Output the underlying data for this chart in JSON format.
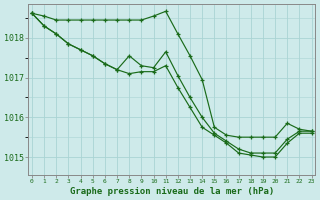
{
  "xlabel": "Graphe pression niveau de la mer (hPa)",
  "x_ticks": [
    0,
    1,
    2,
    3,
    4,
    5,
    6,
    7,
    8,
    9,
    10,
    11,
    12,
    13,
    14,
    15,
    16,
    17,
    18,
    19,
    20,
    21,
    22,
    23
  ],
  "ylim": [
    1014.55,
    1018.85
  ],
  "yticks": [
    1015,
    1016,
    1017,
    1018
  ],
  "xlim": [
    -0.3,
    23.3
  ],
  "bg_color": "#ceeaea",
  "grid_color": "#aad4d4",
  "line_color": "#1a6b1a",
  "line1": [
    1018.62,
    1018.55,
    1018.45,
    1018.45,
    1018.45,
    1018.45,
    1018.45,
    1018.45,
    1018.45,
    1018.45,
    1018.55,
    1018.67,
    1018.1,
    1017.55,
    1016.95,
    1015.75,
    1015.55,
    1015.5,
    1015.5,
    1015.5,
    1015.5,
    1015.85,
    1015.7,
    1015.65
  ],
  "line2": [
    1018.62,
    1018.3,
    1018.1,
    1017.85,
    1017.7,
    1017.55,
    1017.35,
    1017.2,
    1017.55,
    1017.3,
    1017.25,
    1017.65,
    1017.05,
    1016.5,
    1016.0,
    1015.6,
    1015.4,
    1015.2,
    1015.1,
    1015.1,
    1015.1,
    1015.45,
    1015.65,
    1015.65
  ],
  "line3": [
    1018.62,
    1018.3,
    1018.1,
    1017.85,
    1017.7,
    1017.55,
    1017.35,
    1017.2,
    1017.1,
    1017.15,
    1017.15,
    1017.3,
    1016.75,
    1016.25,
    1015.75,
    1015.55,
    1015.35,
    1015.1,
    1015.05,
    1015.0,
    1015.0,
    1015.35,
    1015.6,
    1015.6
  ]
}
